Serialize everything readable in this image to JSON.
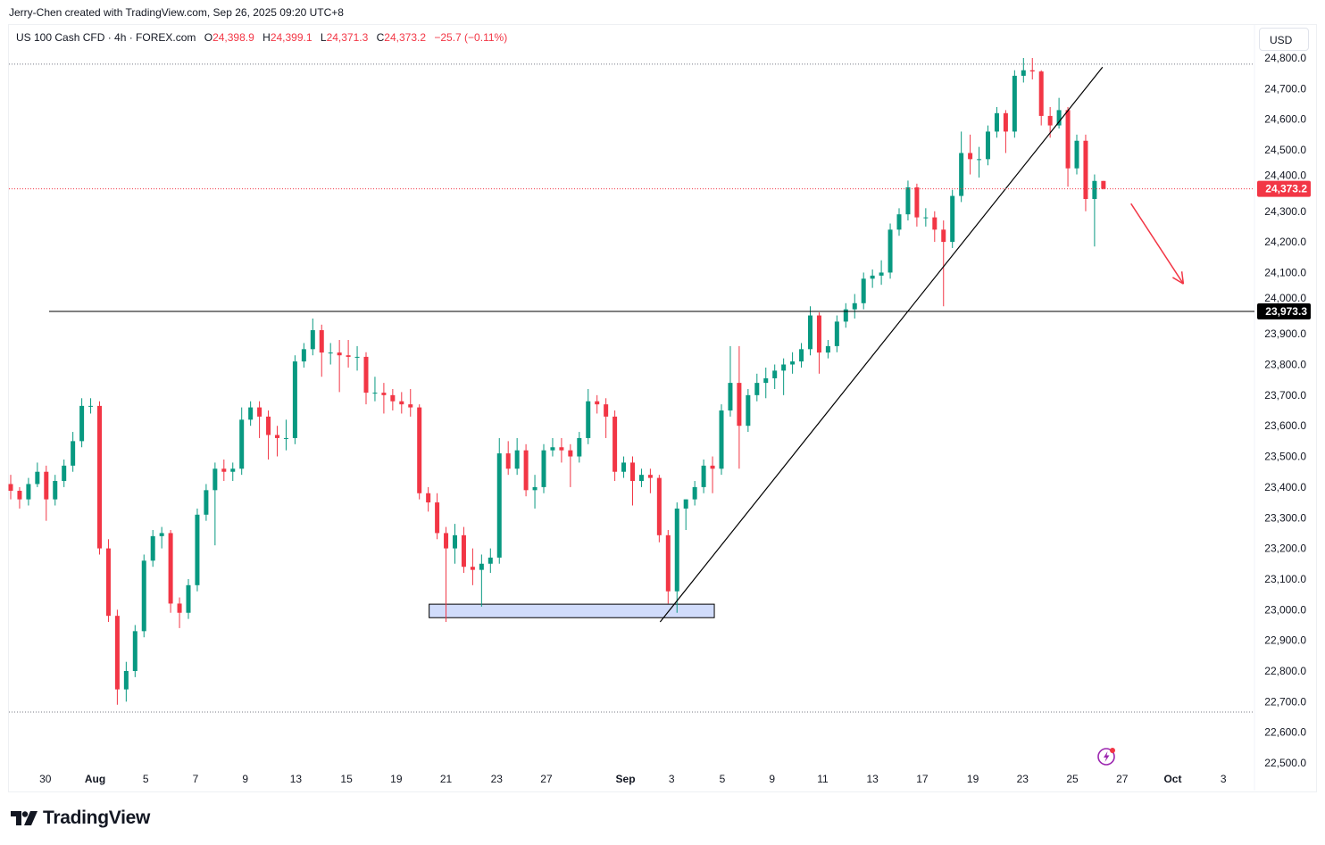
{
  "credit": "Jerry-Chen created with TradingView.com, Sep 26, 2025 09:20 UTC+8",
  "legend": {
    "symbol": "US 100 Cash CFD · 4h · FOREX.com",
    "open_label": "O",
    "open": "24,398.9",
    "high_label": "H",
    "high": "24,399.1",
    "low_label": "L",
    "low": "24,371.3",
    "close_label": "C",
    "close": "24,373.2",
    "change": "−25.7 (−0.11%)"
  },
  "currency_button": "USD",
  "logo_text": "TradingView",
  "colors": {
    "up": "#089981",
    "down": "#f23645",
    "line": "#000000",
    "zone_fill": "#d1dcfb",
    "arrow": "#f23645",
    "icon": "#9c27b0"
  },
  "chart_data": {
    "type": "candlestick",
    "title": "US 100 Cash CFD · 4h · FOREX.com",
    "ylim": [
      22480,
      24830
    ],
    "y_ticks": [
      "22,500.0",
      "22,600.0",
      "22,700.0",
      "22,800.0",
      "22,900.0",
      "23,000.0",
      "23,100.0",
      "23,200.0",
      "23,300.0",
      "23,400.0",
      "23,500.0",
      "23,600.0",
      "23,700.0",
      "23,800.0",
      "23,900.0",
      "24,000.0",
      "24,100.0",
      "24,200.0",
      "24,300.0",
      "24,400.0",
      "24,500.0",
      "24,600.0",
      "24,700.0",
      "24,800.0"
    ],
    "y_tick_values": [
      22500,
      22600,
      22700,
      22800,
      22900,
      23000,
      23100,
      23200,
      23300,
      23400,
      23500,
      23600,
      23700,
      23800,
      23900,
      24000,
      24100,
      24200,
      24300,
      24400,
      24500,
      24600,
      24700,
      24800
    ],
    "x_ticks": [
      {
        "label": "30",
        "index": 3.9,
        "bold": false
      },
      {
        "label": "Aug",
        "index": 9.5,
        "bold": true
      },
      {
        "label": "5",
        "index": 15.2,
        "bold": false
      },
      {
        "label": "7",
        "index": 20.8,
        "bold": false
      },
      {
        "label": "9",
        "index": 26.4,
        "bold": false
      },
      {
        "label": "13",
        "index": 32.1,
        "bold": false
      },
      {
        "label": "15",
        "index": 37.8,
        "bold": false
      },
      {
        "label": "19",
        "index": 43.4,
        "bold": false
      },
      {
        "label": "21",
        "index": 49.0,
        "bold": false
      },
      {
        "label": "23",
        "index": 54.7,
        "bold": false
      },
      {
        "label": "27",
        "index": 60.3,
        "bold": false
      },
      {
        "label": "Sep",
        "index": 69.2,
        "bold": true
      },
      {
        "label": "3",
        "index": 74.4,
        "bold": false
      },
      {
        "label": "5",
        "index": 80.1,
        "bold": false
      },
      {
        "label": "9",
        "index": 85.7,
        "bold": false
      },
      {
        "label": "11",
        "index": 91.4,
        "bold": false
      },
      {
        "label": "13",
        "index": 97.0,
        "bold": false
      },
      {
        "label": "17",
        "index": 102.6,
        "bold": false
      },
      {
        "label": "19",
        "index": 108.3,
        "bold": false
      },
      {
        "label": "23",
        "index": 113.9,
        "bold": false
      },
      {
        "label": "25",
        "index": 119.5,
        "bold": false
      },
      {
        "label": "27",
        "index": 125.1,
        "bold": false
      },
      {
        "label": "Oct",
        "index": 130.8,
        "bold": true
      },
      {
        "label": "3",
        "index": 136.5,
        "bold": false
      }
    ],
    "ohlc": [
      [
        23410,
        23440,
        23360,
        23388
      ],
      [
        23388,
        23400,
        23330,
        23360
      ],
      [
        23360,
        23430,
        23340,
        23410
      ],
      [
        23410,
        23480,
        23400,
        23450
      ],
      [
        23450,
        23470,
        23290,
        23360
      ],
      [
        23360,
        23440,
        23340,
        23420
      ],
      [
        23420,
        23490,
        23400,
        23470
      ],
      [
        23470,
        23580,
        23450,
        23550
      ],
      [
        23550,
        23690,
        23530,
        23665
      ],
      [
        23665,
        23690,
        23640,
        23665
      ],
      [
        23665,
        23680,
        23180,
        23200
      ],
      [
        23200,
        23230,
        22960,
        22980
      ],
      [
        22980,
        23000,
        22690,
        22740
      ],
      [
        22740,
        22830,
        22700,
        22800
      ],
      [
        22800,
        22950,
        22780,
        22930
      ],
      [
        22930,
        23180,
        22910,
        23160
      ],
      [
        23160,
        23260,
        23140,
        23240
      ],
      [
        23240,
        23270,
        23200,
        23250
      ],
      [
        23250,
        23260,
        22990,
        23020
      ],
      [
        23020,
        23040,
        22940,
        22990
      ],
      [
        22990,
        23100,
        22970,
        23080
      ],
      [
        23080,
        23330,
        23060,
        23310
      ],
      [
        23310,
        23410,
        23290,
        23390
      ],
      [
        23390,
        23480,
        23210,
        23460
      ],
      [
        23460,
        23490,
        23420,
        23450
      ],
      [
        23450,
        23480,
        23420,
        23460
      ],
      [
        23460,
        23660,
        23440,
        23620
      ],
      [
        23620,
        23680,
        23600,
        23660
      ],
      [
        23660,
        23680,
        23560,
        23630
      ],
      [
        23630,
        23650,
        23490,
        23570
      ],
      [
        23570,
        23600,
        23500,
        23560
      ],
      [
        23560,
        23620,
        23520,
        23560
      ],
      [
        23560,
        23830,
        23540,
        23810
      ],
      [
        23810,
        23870,
        23790,
        23850
      ],
      [
        23850,
        23950,
        23830,
        23912
      ],
      [
        23912,
        23930,
        23760,
        23839
      ],
      [
        23839,
        23870,
        23800,
        23839
      ],
      [
        23839,
        23880,
        23710,
        23830
      ],
      [
        23830,
        23880,
        23790,
        23825
      ],
      [
        23825,
        23860,
        23780,
        23825
      ],
      [
        23825,
        23840,
        23670,
        23708
      ],
      [
        23708,
        23760,
        23680,
        23708
      ],
      [
        23708,
        23740,
        23640,
        23700
      ],
      [
        23700,
        23720,
        23650,
        23680
      ],
      [
        23680,
        23710,
        23640,
        23670
      ],
      [
        23670,
        23720,
        23630,
        23660
      ],
      [
        23660,
        23670,
        23360,
        23380
      ],
      [
        23380,
        23400,
        23320,
        23350
      ],
      [
        23350,
        23380,
        23230,
        23250
      ],
      [
        23250,
        23270,
        22960,
        23200
      ],
      [
        23200,
        23280,
        23150,
        23243
      ],
      [
        23243,
        23270,
        23120,
        23140
      ],
      [
        23140,
        23200,
        23080,
        23130
      ],
      [
        23130,
        23180,
        23010,
        23150
      ],
      [
        23150,
        23200,
        23120,
        23170
      ],
      [
        23170,
        23560,
        23150,
        23510
      ],
      [
        23510,
        23550,
        23440,
        23460
      ],
      [
        23460,
        23560,
        23440,
        23520
      ],
      [
        23520,
        23540,
        23370,
        23390
      ],
      [
        23390,
        23440,
        23330,
        23400
      ],
      [
        23400,
        23540,
        23380,
        23520
      ],
      [
        23520,
        23560,
        23500,
        23530
      ],
      [
        23530,
        23560,
        23480,
        23520
      ],
      [
        23520,
        23540,
        23400,
        23500
      ],
      [
        23500,
        23580,
        23480,
        23560
      ],
      [
        23560,
        23720,
        23540,
        23680
      ],
      [
        23680,
        23700,
        23640,
        23670
      ],
      [
        23670,
        23690,
        23560,
        23630
      ],
      [
        23630,
        23650,
        23420,
        23450
      ],
      [
        23450,
        23500,
        23430,
        23480
      ],
      [
        23480,
        23500,
        23340,
        23420
      ],
      [
        23420,
        23460,
        23400,
        23440
      ],
      [
        23440,
        23460,
        23380,
        23430
      ],
      [
        23430,
        23440,
        23220,
        23243
      ],
      [
        23243,
        23260,
        23020,
        23060
      ],
      [
        23060,
        23350,
        22990,
        23330
      ],
      [
        23330,
        23360,
        23260,
        23360
      ],
      [
        23360,
        23420,
        23340,
        23400
      ],
      [
        23400,
        23490,
        23380,
        23470
      ],
      [
        23470,
        23500,
        23380,
        23460
      ],
      [
        23460,
        23670,
        23440,
        23650
      ],
      [
        23650,
        23860,
        23630,
        23740
      ],
      [
        23740,
        23860,
        23460,
        23600
      ],
      [
        23600,
        23720,
        23580,
        23700
      ],
      [
        23700,
        23770,
        23680,
        23740
      ],
      [
        23740,
        23790,
        23690,
        23755
      ],
      [
        23755,
        23800,
        23720,
        23780
      ],
      [
        23780,
        23820,
        23700,
        23800
      ],
      [
        23800,
        23840,
        23770,
        23810
      ],
      [
        23810,
        23870,
        23790,
        23850
      ],
      [
        23850,
        23990,
        23830,
        23960
      ],
      [
        23960,
        23970,
        23770,
        23839
      ],
      [
        23839,
        23880,
        23820,
        23860
      ],
      [
        23860,
        23960,
        23840,
        23940
      ],
      [
        23940,
        24000,
        23920,
        23980
      ],
      [
        23980,
        24030,
        23950,
        24000
      ],
      [
        24000,
        24100,
        23980,
        24080
      ],
      [
        24080,
        24110,
        24050,
        24090
      ],
      [
        24090,
        24140,
        24060,
        24100
      ],
      [
        24100,
        24260,
        24080,
        24240
      ],
      [
        24240,
        24310,
        24220,
        24290
      ],
      [
        24290,
        24400,
        24270,
        24378
      ],
      [
        24378,
        24390,
        24250,
        24280
      ],
      [
        24280,
        24310,
        24250,
        24280
      ],
      [
        24280,
        24300,
        24200,
        24240
      ],
      [
        24240,
        24270,
        23990,
        24200
      ],
      [
        24200,
        24370,
        24180,
        24350
      ],
      [
        24350,
        24560,
        24330,
        24490
      ],
      [
        24490,
        24550,
        24420,
        24470
      ],
      [
        24470,
        24510,
        24410,
        24470
      ],
      [
        24470,
        24580,
        24450,
        24560
      ],
      [
        24560,
        24640,
        24540,
        24620
      ],
      [
        24620,
        24630,
        24490,
        24560
      ],
      [
        24560,
        24760,
        24540,
        24742
      ],
      [
        24742,
        24800,
        24720,
        24760
      ],
      [
        24760,
        24800,
        24730,
        24756
      ],
      [
        24756,
        24760,
        24580,
        24611
      ],
      [
        24611,
        24640,
        24540,
        24580
      ],
      [
        24580,
        24670,
        24570,
        24630
      ],
      [
        24630,
        24640,
        24380,
        24440
      ],
      [
        24440,
        24550,
        24420,
        24530
      ],
      [
        24530,
        24550,
        24300,
        24340
      ],
      [
        24340,
        24420,
        24185,
        24398.9
      ],
      [
        24398.9,
        24399.1,
        24371.3,
        24373.2
      ]
    ],
    "last_price": {
      "value": 24373.2,
      "label": "24,373.2"
    },
    "horizontal_line": {
      "value": 23973.3,
      "label": "23,973.3"
    },
    "range_high_marker": 24780,
    "range_low_marker": 22666,
    "trendline": {
      "from": {
        "index": 73.1,
        "price": 22960
      },
      "to": {
        "index": 122.9,
        "price": 24770
      }
    },
    "support_zone": {
      "from_index": 47.1,
      "to_index": 79.2,
      "top": 23018,
      "bottom": 22974
    },
    "projection_arrow": {
      "from": {
        "index": 126.1,
        "price": 24325
      },
      "to": {
        "index": 132.0,
        "price": 24063
      }
    },
    "grid": false
  }
}
